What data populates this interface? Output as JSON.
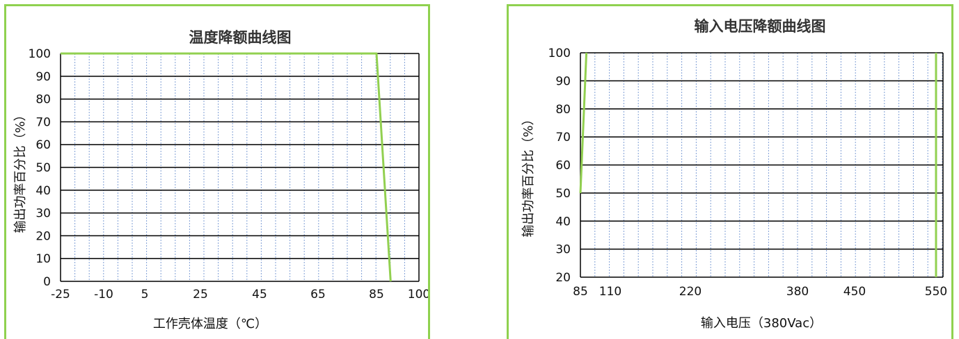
{
  "colors": {
    "curve": "#92d050",
    "border": "#8fd14f",
    "grid_major": "#000000",
    "grid_minor": "#7f9fd6"
  },
  "chart_data": [
    {
      "type": "line",
      "title": "温度降额曲线图",
      "xlabel": "工作壳体温度（℃）",
      "ylabel": "输出功率百分比（%）",
      "x_tick_labels": [
        "-25",
        "-10",
        "5",
        "25",
        "45",
        "65",
        "85",
        "100"
      ],
      "y_tick_labels": [
        "0",
        "10",
        "20",
        "30",
        "40",
        "50",
        "60",
        "70",
        "80",
        "90",
        "100"
      ],
      "ylim": [
        0,
        100
      ],
      "grid": true,
      "legend": "none",
      "series": [
        {
          "x": [
            -25,
            85,
            90
          ],
          "y": [
            100,
            100,
            0
          ]
        }
      ]
    },
    {
      "type": "line",
      "title": "输入电压降额曲线图",
      "xlabel": "输入电压（380Vac）",
      "ylabel": "输出功率百分比（%）",
      "x_tick_labels": [
        "85",
        "110",
        "220",
        "380",
        "450",
        "550"
      ],
      "y_tick_labels": [
        "20",
        "30",
        "40",
        "50",
        "60",
        "70",
        "80",
        "90",
        "100"
      ],
      "ylim": [
        20,
        100
      ],
      "grid": true,
      "legend": "none",
      "series": [
        {
          "x": [
            85,
            90
          ],
          "y": [
            50,
            100
          ]
        },
        {
          "x": [
            550,
            550
          ],
          "y": [
            100,
            20
          ]
        }
      ]
    }
  ]
}
